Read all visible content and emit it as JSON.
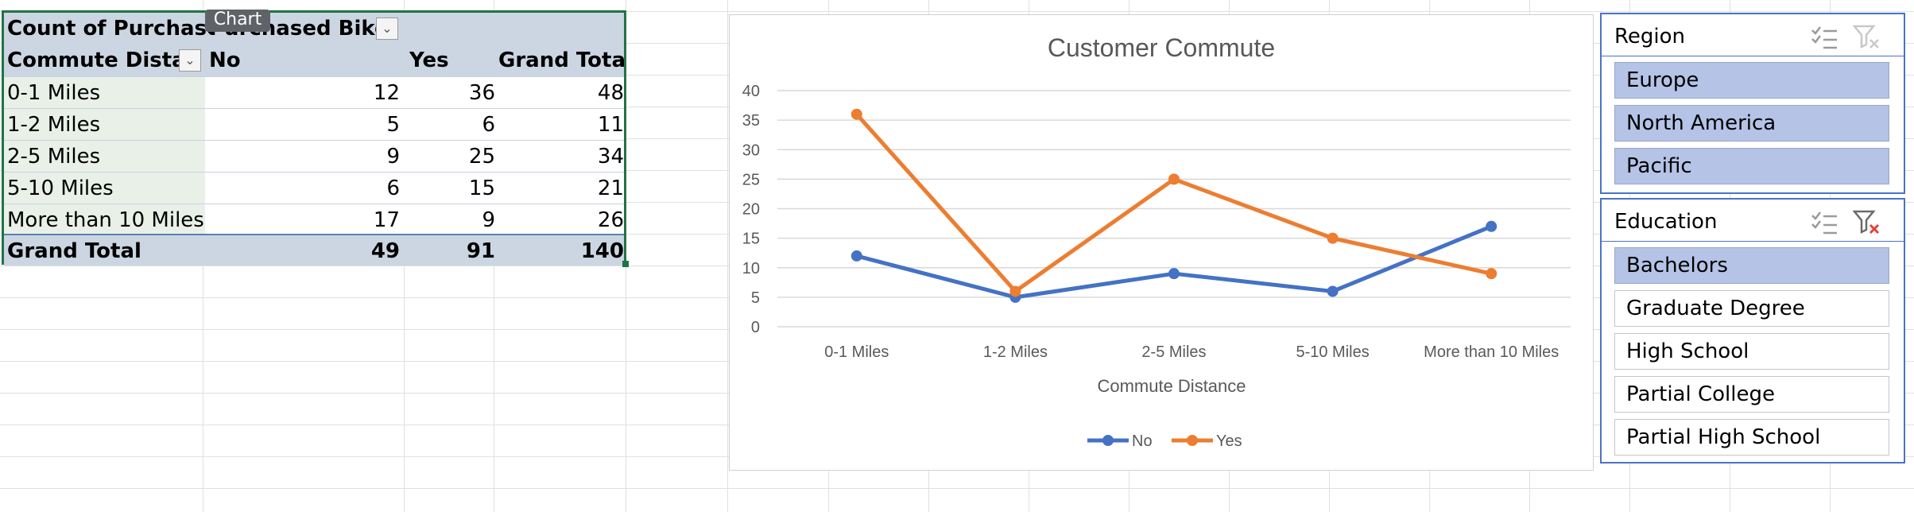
{
  "pivot": {
    "tooltip": "Chart",
    "header1": {
      "col1": "Count of Purchased B",
      "col2": "Purchased Bike"
    },
    "header2": {
      "col1": "Commute Distance",
      "no": "No",
      "yes": "Yes",
      "total": "Grand Total"
    },
    "rows": [
      {
        "label": "0-1 Miles",
        "no": "12",
        "yes": "36",
        "total": "48"
      },
      {
        "label": "1-2 Miles",
        "no": "5",
        "yes": "6",
        "total": "11"
      },
      {
        "label": "2-5 Miles",
        "no": "9",
        "yes": "25",
        "total": "34"
      },
      {
        "label": "5-10 Miles",
        "no": "6",
        "yes": "15",
        "total": "21"
      },
      {
        "label": "More than 10 Miles",
        "no": "17",
        "yes": "9",
        "total": "26"
      }
    ],
    "grand_total": {
      "label": "Grand Total",
      "no": "49",
      "yes": "91",
      "total": "140"
    },
    "dropdown_icon": "chevron-down-icon"
  },
  "chart_data": {
    "type": "line",
    "title": "Customer Commute",
    "xlabel": "Commute Distance",
    "ylabel": "",
    "categories": [
      "0-1 Miles",
      "1-2 Miles",
      "2-5 Miles",
      "5-10 Miles",
      "More than 10 Miles"
    ],
    "series": [
      {
        "name": "No",
        "values": [
          12,
          5,
          9,
          6,
          17
        ],
        "color": "#4472c4"
      },
      {
        "name": "Yes",
        "values": [
          36,
          6,
          25,
          15,
          9
        ],
        "color": "#ed7d31"
      }
    ],
    "yticks": [
      "0",
      "5",
      "10",
      "15",
      "20",
      "25",
      "30",
      "35",
      "40"
    ],
    "ylim": [
      0,
      40
    ],
    "grid": true,
    "legend": "bottom"
  },
  "slicers": [
    {
      "title": "Region",
      "multiselect_icon": "multi-select-icon",
      "clear_icon": "clear-filter-icon",
      "clear_active": false,
      "items": [
        {
          "label": "Europe",
          "selected": true
        },
        {
          "label": "North America",
          "selected": true
        },
        {
          "label": "Pacific",
          "selected": true
        }
      ]
    },
    {
      "title": "Education",
      "multiselect_icon": "multi-select-icon",
      "clear_icon": "clear-filter-icon",
      "clear_active": true,
      "items": [
        {
          "label": "Bachelors",
          "selected": true
        },
        {
          "label": "Graduate Degree",
          "selected": false
        },
        {
          "label": "High School",
          "selected": false
        },
        {
          "label": "Partial College",
          "selected": false
        },
        {
          "label": "Partial High School",
          "selected": false
        }
      ]
    }
  ]
}
